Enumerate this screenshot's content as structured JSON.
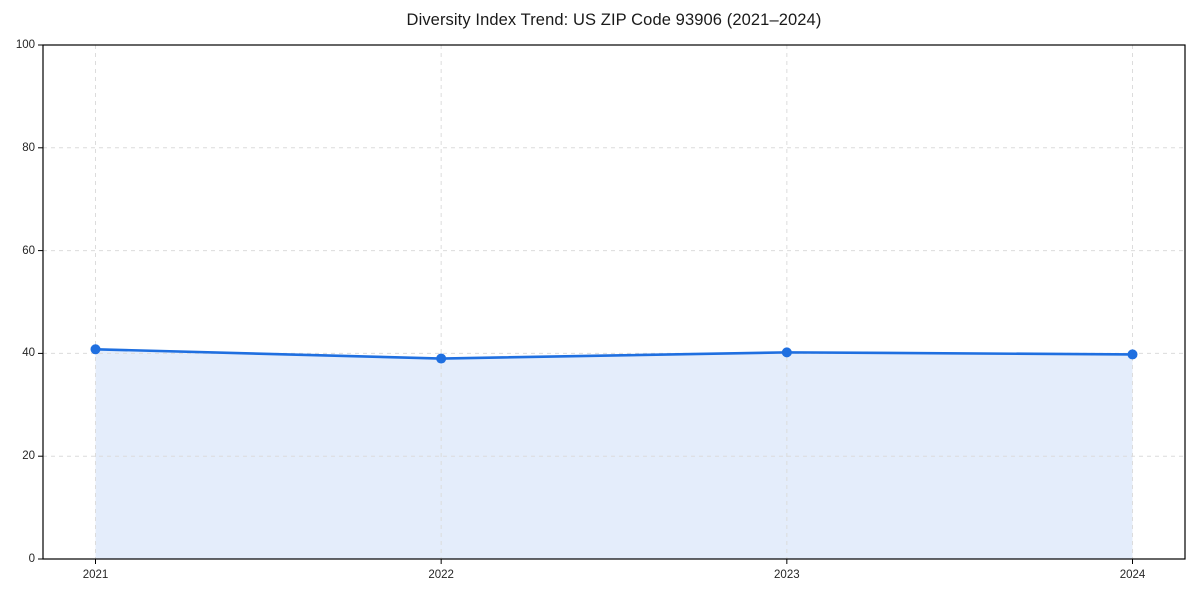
{
  "title": "Diversity Index Trend: US ZIP Code 93906 (2021–2024)",
  "chart_data": {
    "type": "area",
    "title": "Diversity Index Trend: US ZIP Code 93906 (2021–2024)",
    "categories": [
      "2021",
      "2022",
      "2023",
      "2024"
    ],
    "series": [
      {
        "name": "Diversity Index",
        "values": [
          40.8,
          39.0,
          40.2,
          39.8
        ]
      }
    ],
    "xlabel": "",
    "ylabel": "",
    "ylim": [
      0,
      100
    ],
    "yticks": [
      0,
      20,
      40,
      60,
      80,
      100
    ],
    "grid": true,
    "grid_style": "dashed",
    "legend": false,
    "colors": {
      "line": "#1f6fe0",
      "marker": "#1f6fe0",
      "fill": "rgba(31,111,224,0.12)",
      "grid": "#dcdcdc",
      "spine": "#000000",
      "tick_text": "#262626"
    }
  }
}
